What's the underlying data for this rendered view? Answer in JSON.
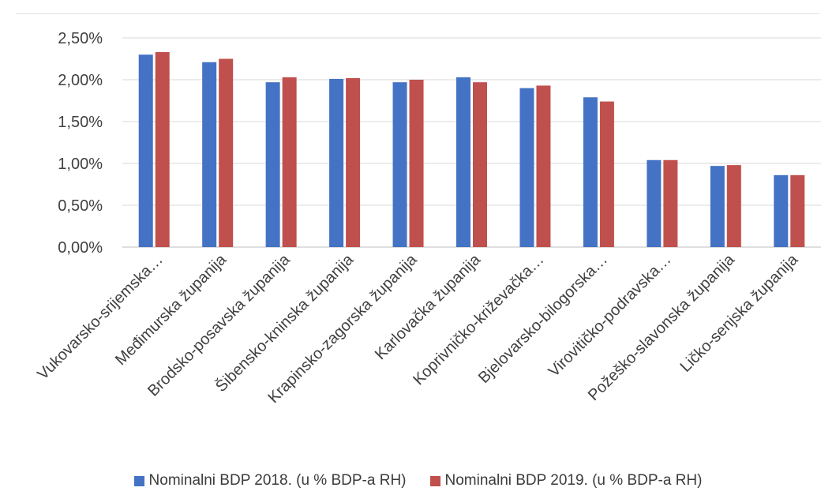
{
  "chart_data": {
    "type": "bar",
    "title": "",
    "xlabel": "",
    "ylabel": "",
    "ylim": [
      0,
      0.025
    ],
    "yticks": [
      "0,00%",
      "0,50%",
      "1,00%",
      "1,50%",
      "2,00%",
      "2,50%"
    ],
    "categories": [
      "Vukovarsko-srijemska…",
      "Međimurska županija",
      "Brodsko-posavska županija",
      "Šibensko-kninska županija",
      "Krapinsko-zagorska županija",
      "Karlovačka županija",
      "Koprivničko-križevačka…",
      "Bjelovarsko-bilogorska…",
      "Virovitičko-podravska…",
      "Požeško-slavonska županija",
      "Ličko-senjska županija"
    ],
    "series": [
      {
        "name": "Nominalni BDP 2018. (u % BDP-a RH)",
        "color": "#4472C4",
        "values": [
          0.023,
          0.0221,
          0.0197,
          0.0201,
          0.0197,
          0.0203,
          0.019,
          0.0179,
          0.0104,
          0.0097,
          0.0086
        ]
      },
      {
        "name": "Nominalni BDP 2019.  (u % BDP-a RH)",
        "color": "#C0504D",
        "values": [
          0.0233,
          0.0225,
          0.0203,
          0.0202,
          0.02,
          0.0197,
          0.0193,
          0.0174,
          0.0104,
          0.0098,
          0.0086
        ]
      }
    ],
    "grid": true,
    "legend_position": "bottom"
  }
}
